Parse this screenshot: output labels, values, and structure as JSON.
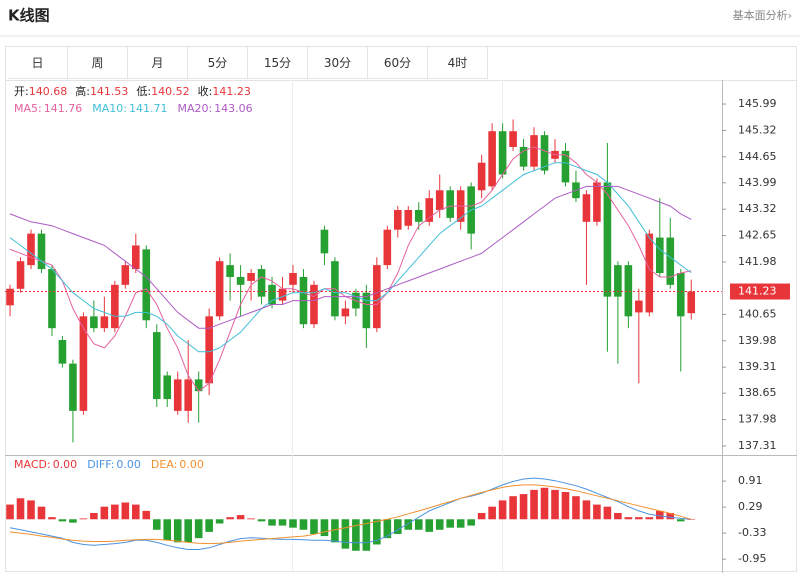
{
  "header": {
    "title": "K线图",
    "link": "基本面分析›"
  },
  "tabs": [
    "日",
    "周",
    "月",
    "5分",
    "15分",
    "30分",
    "60分",
    "4时"
  ],
  "chart_data": [
    {
      "type": "candlestick",
      "up_color": "#e8353a",
      "down_color": "#25a031",
      "ohlc_legend": [
        {
          "label": "开:",
          "value": 140.68
        },
        {
          "label": "高:",
          "value": 141.53
        },
        {
          "label": "低:",
          "value": 140.52
        },
        {
          "label": "收:",
          "value": 141.23
        }
      ],
      "legend_value_color": "#e8353a",
      "open": [
        140.88,
        141.3,
        141.9,
        142.7,
        141.8,
        140.0,
        139.4,
        138.2,
        140.6,
        140.3,
        140.3,
        141.4,
        141.8,
        142.3,
        140.2,
        139.1,
        138.2,
        138.2,
        139.0,
        138.9,
        140.6,
        141.9,
        141.6,
        141.5,
        141.8,
        141.4,
        141.0,
        141.4,
        141.6,
        140.4,
        142.8,
        142.0,
        140.6,
        141.2,
        141.2,
        140.3,
        141.9,
        142.8,
        142.9,
        143.3,
        143.0,
        143.3,
        143.8,
        143.0,
        143.9,
        143.8,
        143.9,
        145.3,
        144.9,
        144.9,
        144.4,
        145.2,
        144.6,
        144.8,
        144.0,
        143.0,
        143.0,
        144.0,
        141.9,
        141.9,
        140.7,
        140.7,
        142.6,
        142.6,
        141.7,
        140.68
      ],
      "high": [
        141.4,
        142.1,
        142.8,
        142.8,
        141.9,
        140.1,
        139.5,
        140.7,
        141.0,
        141.1,
        141.5,
        142.0,
        142.7,
        142.4,
        140.4,
        139.2,
        139.2,
        140.0,
        139.2,
        140.8,
        142.1,
        142.2,
        141.9,
        141.8,
        141.9,
        141.6,
        141.6,
        141.9,
        141.8,
        141.5,
        142.9,
        142.1,
        141.0,
        141.3,
        141.4,
        142.1,
        142.9,
        143.4,
        143.4,
        143.5,
        143.8,
        144.2,
        143.9,
        143.9,
        144.0,
        144.7,
        145.5,
        145.5,
        145.6,
        145.1,
        145.4,
        145.3,
        145.1,
        145.0,
        144.3,
        143.8,
        144.1,
        145.0,
        142.0,
        142.0,
        141.3,
        142.8,
        143.6,
        143.1,
        141.8,
        141.53
      ],
      "low": [
        140.6,
        141.2,
        141.8,
        141.7,
        140.1,
        139.3,
        137.4,
        138.1,
        140.2,
        140.2,
        140.2,
        141.3,
        141.7,
        140.3,
        138.3,
        138.3,
        138.1,
        137.9,
        137.9,
        138.6,
        140.5,
        141.0,
        140.6,
        141.0,
        140.9,
        140.8,
        140.9,
        141.2,
        140.3,
        140.3,
        141.9,
        140.5,
        140.4,
        140.6,
        139.8,
        140.2,
        141.8,
        142.6,
        142.8,
        142.8,
        142.9,
        143.1,
        143.0,
        142.8,
        142.3,
        143.6,
        143.8,
        144.1,
        144.8,
        144.3,
        144.3,
        144.2,
        144.5,
        143.9,
        143.5,
        141.4,
        142.9,
        139.7,
        139.4,
        140.3,
        138.9,
        140.6,
        141.6,
        141.3,
        139.2,
        140.52
      ],
      "close": [
        141.3,
        142.0,
        142.7,
        141.8,
        140.3,
        139.4,
        138.2,
        140.6,
        140.3,
        140.6,
        141.4,
        141.9,
        142.4,
        140.5,
        138.5,
        138.5,
        139.0,
        139.0,
        138.7,
        140.6,
        142.0,
        141.6,
        141.4,
        141.7,
        141.1,
        140.9,
        141.3,
        141.7,
        140.4,
        141.4,
        142.2,
        140.6,
        140.8,
        140.8,
        140.3,
        141.9,
        142.8,
        143.3,
        143.3,
        143.0,
        143.6,
        143.8,
        143.1,
        143.8,
        142.7,
        144.5,
        145.3,
        144.2,
        145.3,
        144.4,
        145.2,
        144.3,
        144.8,
        144.0,
        143.6,
        143.7,
        144.0,
        141.1,
        141.1,
        140.6,
        141.0,
        142.7,
        141.7,
        141.4,
        140.6,
        141.23
      ],
      "series": [
        {
          "name": "MA5:",
          "current": 141.76,
          "color": "#e5619f",
          "values": [
            142.3,
            142.2,
            142.1,
            142.0,
            141.9,
            141.5,
            140.8,
            140.3,
            139.9,
            139.8,
            140.1,
            140.6,
            141.2,
            141.3,
            140.9,
            140.3,
            139.8,
            139.1,
            138.7,
            138.9,
            139.5,
            140.2,
            140.9,
            141.4,
            141.6,
            141.5,
            141.3,
            141.3,
            141.2,
            141.1,
            141.3,
            141.3,
            141.1,
            141.0,
            140.9,
            140.9,
            141.2,
            141.7,
            142.4,
            142.9,
            143.1,
            143.3,
            143.4,
            143.4,
            143.4,
            143.5,
            143.8,
            144.2,
            144.6,
            144.8,
            144.9,
            144.8,
            144.7,
            144.7,
            144.5,
            144.2,
            144.0,
            143.7,
            143.3,
            142.9,
            142.4,
            141.8,
            141.6,
            141.6,
            141.7,
            141.76
          ]
        },
        {
          "name": "MA10:",
          "current": 141.71,
          "color": "#3fbfd8",
          "values": [
            142.6,
            142.4,
            142.2,
            142.0,
            141.8,
            141.5,
            141.2,
            141.0,
            140.8,
            140.7,
            140.6,
            140.6,
            140.7,
            140.7,
            140.6,
            140.4,
            140.1,
            139.9,
            139.7,
            139.7,
            139.8,
            140.0,
            140.2,
            140.5,
            140.8,
            141.0,
            141.1,
            141.2,
            141.2,
            141.2,
            141.3,
            141.2,
            141.2,
            141.1,
            141.0,
            141.0,
            141.2,
            141.5,
            141.8,
            142.1,
            142.4,
            142.7,
            142.9,
            143.1,
            143.3,
            143.4,
            143.6,
            143.8,
            144.0,
            144.2,
            144.3,
            144.4,
            144.5,
            144.5,
            144.4,
            144.3,
            144.2,
            144.0,
            143.7,
            143.4,
            143.0,
            142.6,
            142.3,
            142.1,
            141.9,
            141.71
          ]
        },
        {
          "name": "MA20:",
          "current": 143.06,
          "color": "#ad5bc4",
          "values": [
            143.2,
            143.1,
            143.0,
            142.95,
            142.9,
            142.8,
            142.7,
            142.6,
            142.5,
            142.4,
            142.2,
            142.0,
            141.8,
            141.6,
            141.3,
            141.0,
            140.7,
            140.5,
            140.3,
            140.3,
            140.4,
            140.5,
            140.6,
            140.7,
            140.8,
            140.9,
            140.9,
            141.0,
            141.0,
            141.0,
            141.1,
            141.1,
            141.1,
            141.1,
            141.1,
            141.2,
            141.3,
            141.4,
            141.5,
            141.6,
            141.7,
            141.8,
            141.9,
            142.0,
            142.1,
            142.2,
            142.4,
            142.6,
            142.8,
            143.0,
            143.2,
            143.4,
            143.6,
            143.7,
            143.8,
            143.9,
            143.9,
            143.9,
            143.9,
            143.8,
            143.7,
            143.6,
            143.5,
            143.4,
            143.2,
            143.06
          ]
        }
      ],
      "last_price": 141.23,
      "last_price_color": "#e8353a",
      "ylim": [
        137.08,
        146.6
      ],
      "yticks": [
        145.99,
        145.32,
        144.65,
        143.99,
        143.32,
        142.65,
        141.98,
        140.65,
        139.98,
        139.31,
        138.65,
        137.98,
        137.31
      ]
    },
    {
      "type": "macd",
      "up_color": "#e8353a",
      "down_color": "#25a031",
      "ylim": [
        -1.28,
        1.46
      ],
      "yticks": [
        0.91,
        0.29,
        -0.33,
        -0.95
      ],
      "series": [
        {
          "name": "MACD:",
          "current_label": "0.00",
          "color": "#e8353a",
          "values": [
            0.35,
            0.5,
            0.45,
            0.3,
            0.05,
            -0.05,
            -0.08,
            0.02,
            0.15,
            0.3,
            0.35,
            0.4,
            0.35,
            0.2,
            -0.25,
            -0.5,
            -0.55,
            -0.55,
            -0.45,
            -0.3,
            -0.1,
            0.05,
            0.1,
            0.02,
            -0.05,
            -0.15,
            -0.15,
            -0.2,
            -0.25,
            -0.35,
            -0.4,
            -0.55,
            -0.7,
            -0.75,
            -0.75,
            -0.6,
            -0.45,
            -0.35,
            -0.25,
            -0.25,
            -0.3,
            -0.25,
            -0.2,
            -0.2,
            -0.15,
            0.15,
            0.3,
            0.45,
            0.55,
            0.6,
            0.7,
            0.75,
            0.7,
            0.65,
            0.55,
            0.45,
            0.35,
            0.3,
            0.15,
            0.05,
            0.05,
            0.05,
            0.2,
            0.15,
            -0.05,
            0.0
          ]
        },
        {
          "name": "DIFF:",
          "current_label": "0.00",
          "color": "#4c93e0",
          "values": [
            -0.2,
            -0.25,
            -0.3,
            -0.35,
            -0.4,
            -0.45,
            -0.55,
            -0.6,
            -0.62,
            -0.6,
            -0.58,
            -0.55,
            -0.5,
            -0.5,
            -0.55,
            -0.62,
            -0.68,
            -0.72,
            -0.72,
            -0.68,
            -0.6,
            -0.52,
            -0.46,
            -0.44,
            -0.45,
            -0.47,
            -0.48,
            -0.48,
            -0.49,
            -0.5,
            -0.5,
            -0.52,
            -0.55,
            -0.56,
            -0.56,
            -0.5,
            -0.4,
            -0.25,
            -0.1,
            0.05,
            0.2,
            0.3,
            0.4,
            0.5,
            0.55,
            0.62,
            0.72,
            0.82,
            0.9,
            0.96,
            0.98,
            0.96,
            0.92,
            0.86,
            0.8,
            0.72,
            0.62,
            0.52,
            0.42,
            0.3,
            0.2,
            0.12,
            0.08,
            0.05,
            0.02,
            0.0
          ]
        },
        {
          "name": "DEA:",
          "current_label": "0.00",
          "color": "#f0902f",
          "values": [
            -0.3,
            -0.33,
            -0.36,
            -0.4,
            -0.43,
            -0.47,
            -0.5,
            -0.52,
            -0.53,
            -0.53,
            -0.52,
            -0.5,
            -0.49,
            -0.48,
            -0.48,
            -0.5,
            -0.52,
            -0.55,
            -0.57,
            -0.58,
            -0.57,
            -0.55,
            -0.52,
            -0.5,
            -0.48,
            -0.46,
            -0.44,
            -0.42,
            -0.4,
            -0.36,
            -0.3,
            -0.25,
            -0.2,
            -0.15,
            -0.1,
            -0.05,
            0.0,
            0.06,
            0.13,
            0.2,
            0.27,
            0.35,
            0.42,
            0.5,
            0.57,
            0.64,
            0.7,
            0.76,
            0.8,
            0.82,
            0.82,
            0.8,
            0.77,
            0.73,
            0.68,
            0.62,
            0.56,
            0.5,
            0.44,
            0.38,
            0.32,
            0.26,
            0.2,
            0.14,
            0.07,
            0.0
          ]
        }
      ]
    }
  ]
}
